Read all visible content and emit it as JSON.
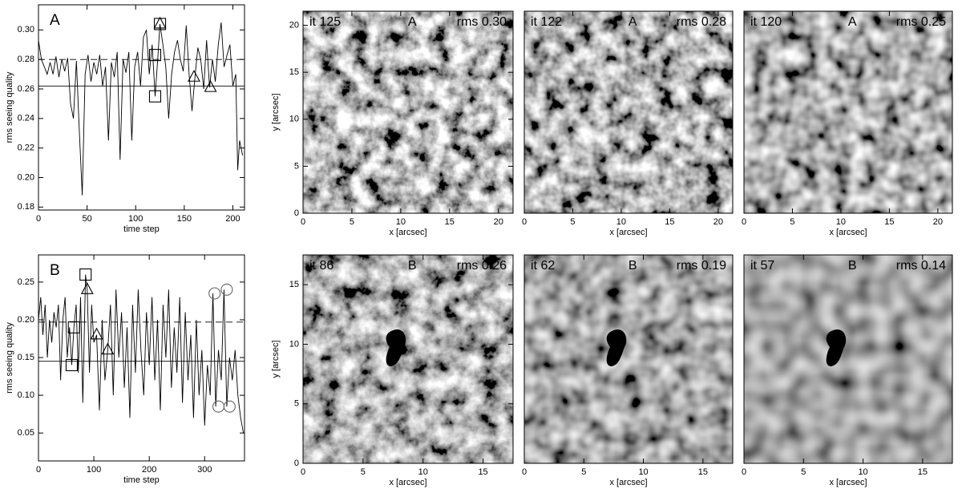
{
  "chart_data": [
    {
      "type": "line",
      "panel": "A",
      "xlabel": "time step",
      "ylabel": "rms seeing quality",
      "color": "#000000",
      "xlim": [
        0,
        212
      ],
      "ylim": [
        0.178,
        0.317
      ],
      "xticks": [
        0,
        50,
        100,
        150,
        200
      ],
      "yticks": [
        0.18,
        {
          "value": 0.2,
          "label": "0.20"
        },
        0.22,
        0.24,
        0.26,
        0.28,
        {
          "value": 0.3,
          "label": "0.30"
        }
      ],
      "x": [
        0,
        3,
        6,
        9,
        12,
        15,
        18,
        21,
        24,
        27,
        30,
        33,
        36,
        39,
        42,
        45,
        48,
        51,
        54,
        57,
        60,
        63,
        66,
        69,
        72,
        75,
        78,
        81,
        84,
        87,
        90,
        93,
        96,
        99,
        102,
        105,
        108,
        111,
        114,
        117,
        120,
        123,
        125,
        128,
        131,
        134,
        137,
        140,
        143,
        146,
        149,
        152,
        155,
        158,
        161,
        164,
        167,
        170,
        173,
        176,
        179,
        182,
        185,
        188,
        191,
        194,
        197,
        200,
        203,
        205,
        207,
        210
      ],
      "values": [
        0.293,
        0.28,
        0.275,
        0.27,
        0.278,
        0.27,
        0.282,
        0.268,
        0.28,
        0.272,
        0.281,
        0.25,
        0.24,
        0.279,
        0.232,
        0.188,
        0.27,
        0.283,
        0.265,
        0.278,
        0.27,
        0.283,
        0.262,
        0.275,
        0.225,
        0.278,
        0.268,
        0.285,
        0.212,
        0.28,
        0.271,
        0.285,
        0.225,
        0.275,
        0.285,
        0.262,
        0.295,
        0.3,
        0.27,
        0.29,
        0.255,
        0.283,
        0.304,
        0.29,
        0.275,
        0.24,
        0.27,
        0.285,
        0.293,
        0.28,
        0.272,
        0.303,
        0.27,
        0.245,
        0.268,
        0.288,
        0.28,
        0.26,
        0.293,
        0.261,
        0.28,
        0.265,
        0.29,
        0.305,
        0.275,
        0.283,
        0.29,
        0.262,
        0.27,
        0.205,
        0.225,
        0.215
      ],
      "hlines": [
        {
          "value": 0.28,
          "style": "dashed"
        },
        {
          "value": 0.262,
          "style": "solid"
        }
      ],
      "markers": [
        {
          "shape": "square",
          "x": [
            120,
            120,
            125
          ],
          "values": [
            0.255,
            0.283,
            0.304
          ]
        },
        {
          "shape": "triangle",
          "x": [
            125,
            160,
            177
          ],
          "values": [
            0.304,
            0.268,
            0.261
          ]
        }
      ]
    },
    {
      "type": "line",
      "panel": "B",
      "xlabel": "time step",
      "ylabel": "rms seeing quality",
      "color": "#000000",
      "xlim": [
        0,
        372
      ],
      "ylim": [
        0.013,
        0.286
      ],
      "xticks": [
        0,
        100,
        200,
        300
      ],
      "yticks": [
        0.05,
        {
          "value": 0.1,
          "label": "0.10"
        },
        0.15,
        {
          "value": 0.2,
          "label": "0.20"
        },
        0.25
      ],
      "x": [
        0,
        4,
        8,
        12,
        16,
        20,
        24,
        28,
        32,
        36,
        40,
        44,
        48,
        52,
        56,
        60,
        64,
        68,
        72,
        76,
        80,
        85,
        88,
        92,
        96,
        100,
        105,
        110,
        115,
        120,
        125,
        130,
        135,
        140,
        145,
        150,
        155,
        160,
        165,
        170,
        175,
        180,
        185,
        190,
        195,
        200,
        205,
        210,
        215,
        220,
        225,
        230,
        235,
        240,
        245,
        250,
        255,
        260,
        265,
        270,
        275,
        280,
        285,
        290,
        295,
        300,
        305,
        310,
        315,
        320,
        325,
        330,
        335,
        340,
        345,
        350,
        355,
        360,
        365,
        370
      ],
      "values": [
        0.2,
        0.23,
        0.18,
        0.22,
        0.15,
        0.2,
        0.17,
        0.21,
        0.19,
        0.22,
        0.12,
        0.2,
        0.23,
        0.15,
        0.19,
        0.14,
        0.19,
        0.22,
        0.13,
        0.23,
        0.09,
        0.26,
        0.24,
        0.13,
        0.22,
        0.17,
        0.18,
        0.08,
        0.2,
        0.12,
        0.16,
        0.22,
        0.1,
        0.24,
        0.15,
        0.21,
        0.11,
        0.19,
        0.07,
        0.22,
        0.13,
        0.24,
        0.16,
        0.1,
        0.21,
        0.14,
        0.23,
        0.12,
        0.2,
        0.08,
        0.22,
        0.15,
        0.24,
        0.11,
        0.19,
        0.13,
        0.23,
        0.09,
        0.21,
        0.12,
        0.18,
        0.07,
        0.2,
        0.1,
        0.16,
        0.06,
        0.14,
        0.1,
        0.235,
        0.085,
        0.16,
        0.12,
        0.24,
        0.085,
        0.15,
        0.12,
        0.16,
        0.1,
        0.07,
        0.05
      ],
      "hlines": [
        {
          "value": 0.197,
          "style": "dashed"
        },
        {
          "value": 0.145,
          "style": "solid"
        }
      ],
      "markers": [
        {
          "shape": "square",
          "x": [
            60,
            64,
            85
          ],
          "values": [
            0.14,
            0.19,
            0.26
          ]
        },
        {
          "shape": "triangle",
          "x": [
            88,
            105,
            125
          ],
          "values": [
            0.24,
            0.18,
            0.16
          ]
        },
        {
          "shape": "circle",
          "x": [
            318,
            340,
            325,
            345
          ],
          "values": [
            0.235,
            0.24,
            0.085,
            0.085
          ]
        }
      ]
    },
    {
      "type": "image",
      "iteration": "it 125",
      "label": "A",
      "rms": "rms 0.30",
      "text_color": "#f2d21b",
      "xlabel": "x [arcsec]",
      "ylabel": "y [arcsec]",
      "xlim": [
        0,
        21.5
      ],
      "ylim": [
        0,
        21.5
      ],
      "xticks": [
        0,
        5,
        10,
        15,
        20
      ],
      "yticks": [
        0,
        5,
        10,
        15,
        20
      ]
    },
    {
      "type": "image",
      "iteration": "it 122",
      "label": "A",
      "rms": "rms 0.28",
      "text_color": "#f2d21b",
      "xlabel": "x [arcsec]",
      "xlim": [
        0,
        21.5
      ],
      "ylim": [
        0,
        21.5
      ],
      "xticks": [
        0,
        5,
        10,
        15,
        20
      ]
    },
    {
      "type": "image",
      "iteration": "it 120",
      "label": "A",
      "rms": "rms 0.25",
      "text_color": "#f2d21b",
      "xlabel": "x [arcsec]",
      "xlim": [
        0,
        21.5
      ],
      "ylim": [
        0,
        21.5
      ],
      "xticks": [
        0,
        5,
        10,
        15,
        20
      ]
    },
    {
      "type": "image",
      "iteration": "it 86",
      "label": "B",
      "rms": "rms 0.26",
      "text_color": "#f2d21b",
      "xlabel": "x [arcsec]",
      "ylabel": "y [arcsec]",
      "xlim": [
        0,
        17.5
      ],
      "ylim": [
        0,
        17.5
      ],
      "xticks": [
        0,
        5,
        10,
        15
      ],
      "yticks": [
        0,
        5,
        10,
        15
      ]
    },
    {
      "type": "image",
      "iteration": "it 62",
      "label": "B",
      "rms": "rms 0.19",
      "text_color": "#f2d21b",
      "xlabel": "x [arcsec]",
      "xlim": [
        0,
        17.5
      ],
      "ylim": [
        0,
        17.5
      ],
      "xticks": [
        0,
        5,
        10,
        15
      ]
    },
    {
      "type": "image",
      "iteration": "it 57",
      "label": "B",
      "rms": "rms 0.14",
      "text_color": "#f2d21b",
      "xlabel": "x [arcsec]",
      "xlim": [
        0,
        17.5
      ],
      "ylim": [
        0,
        17.5
      ],
      "xticks": [
        0,
        5,
        10,
        15
      ]
    }
  ]
}
